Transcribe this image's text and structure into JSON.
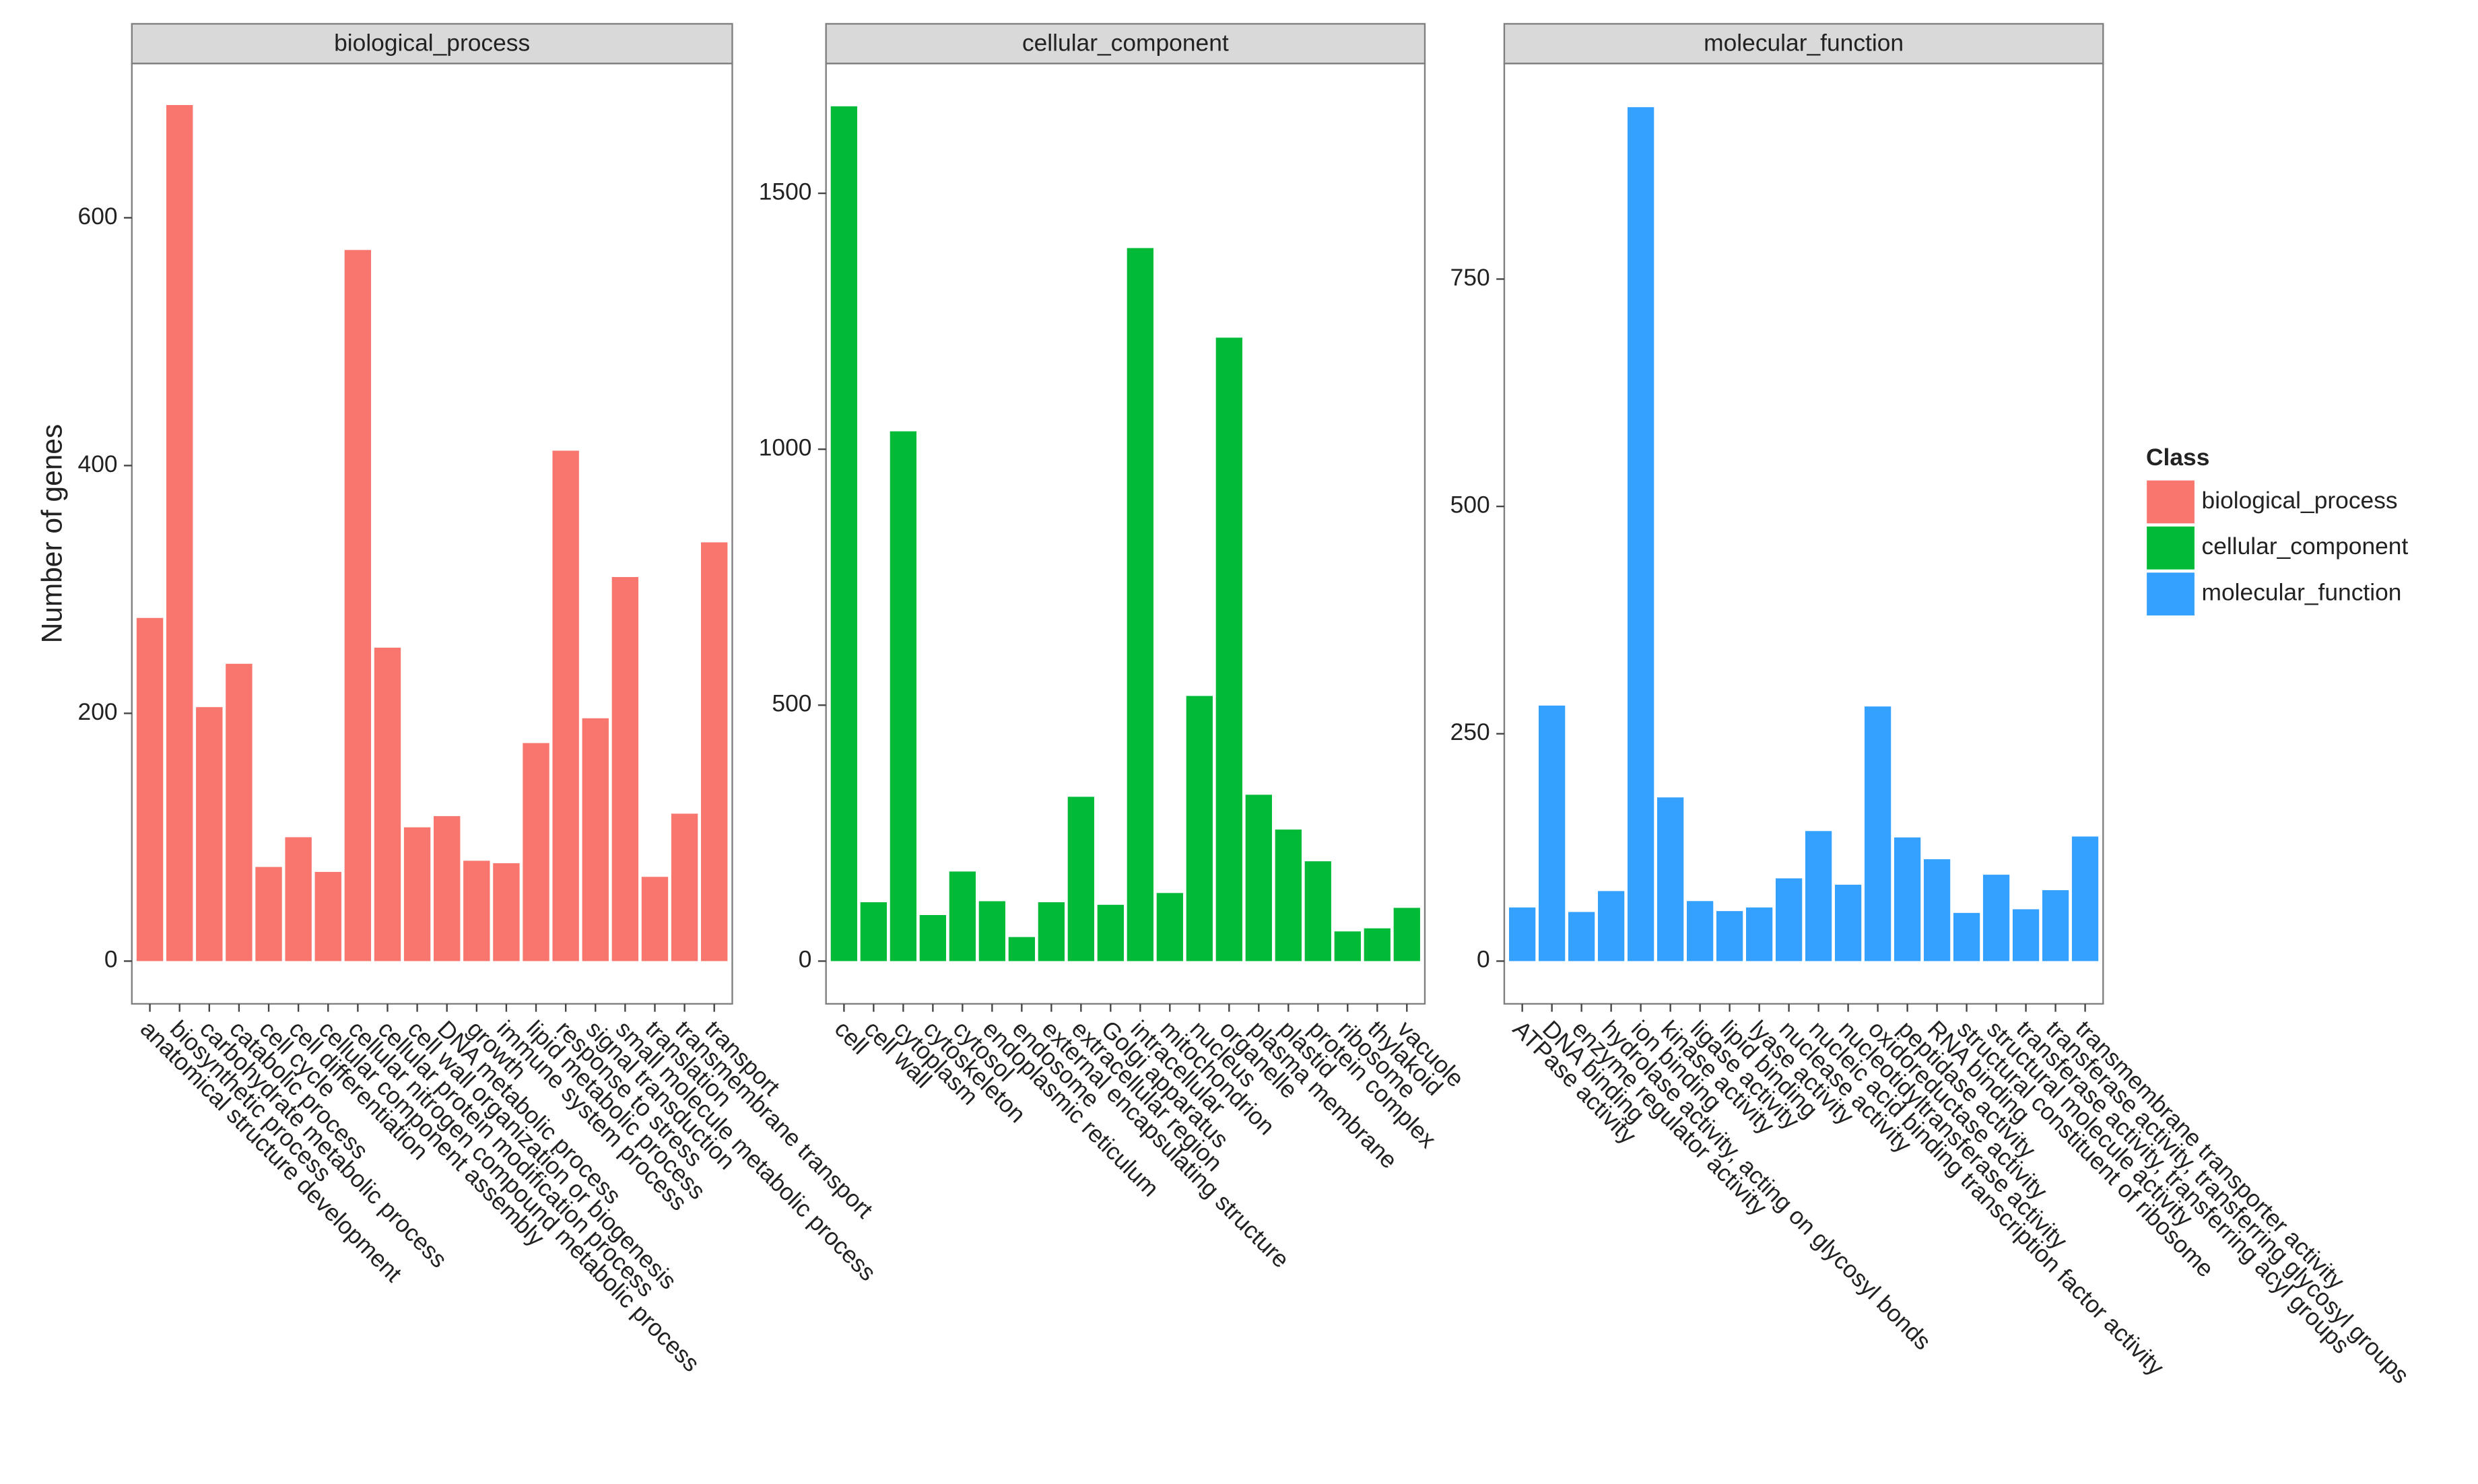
{
  "ylabel": "Number of genes",
  "legend": {
    "title": "Class",
    "position": "right"
  },
  "chart_data": [
    {
      "type": "bar",
      "title": "biological_process",
      "color": "#f8766d",
      "categories": [
        "anatomical structure development",
        "biosynthetic process",
        "carbohydrate metabolic process",
        "catabolic process",
        "cell cycle",
        "cell differentiation",
        "cellular component assembly",
        "cellular nitrogen compound metabolic process",
        "cellular protein modification process",
        "cell wall organization or biogenesis",
        "DNA metabolic process",
        "growth",
        "immune system process",
        "lipid metabolic process",
        "response to stress",
        "signal transduction",
        "small molecule metabolic process",
        "translation",
        "transmembrane transport",
        "transport"
      ],
      "values": [
        277,
        691,
        205,
        240,
        76,
        100,
        72,
        574,
        253,
        108,
        117,
        81,
        79,
        176,
        412,
        196,
        310,
        68,
        119,
        338
      ],
      "ylim": [
        -34.5,
        724.5
      ],
      "yticks": [
        0,
        200,
        400,
        600
      ],
      "grid": false
    },
    {
      "type": "bar",
      "title": "cellular_component",
      "color": "#00ba38",
      "categories": [
        "cell",
        "cell wall",
        "cytoplasm",
        "cytoskeleton",
        "cytosol",
        "endoplasmic reticulum",
        "endosome",
        "external encapsulating structure",
        "extracellular region",
        "Golgi apparatus",
        "intracellular",
        "mitochondrion",
        "nucleus",
        "organelle",
        "plasma membrane",
        "plastid",
        "protein complex",
        "ribosome",
        "thylakoid",
        "vacuole"
      ],
      "values": [
        1670,
        115,
        1035,
        90,
        175,
        117,
        47,
        115,
        321,
        110,
        1393,
        133,
        518,
        1218,
        325,
        257,
        195,
        58,
        64,
        104
      ],
      "ylim": [
        -83.5,
        1753.5
      ],
      "yticks": [
        0,
        500,
        1000,
        1500
      ],
      "grid": false
    },
    {
      "type": "bar",
      "title": "molecular_function",
      "color": "#34a0ff",
      "categories": [
        "ATPase activity",
        "DNA binding",
        "enzyme regulator activity",
        "hydrolase activity, acting on glycosyl bonds",
        "ion binding",
        "kinase activity",
        "ligase activity",
        "lipid binding",
        "lyase activity",
        "nuclease activity",
        "nucleic acid binding transcription factor activity",
        "nucleotidyltransferase activity",
        "oxidoreductase activity",
        "peptidase activity",
        "RNA binding",
        "structural constituent of ribosome",
        "structural molecule activity",
        "transferase activity, transferring acyl groups",
        "transferase activity, transferring glycosyl groups",
        "transmembrane transporter activity"
      ],
      "values": [
        59,
        281,
        54,
        77,
        939,
        180,
        66,
        55,
        59,
        91,
        143,
        84,
        280,
        136,
        112,
        53,
        95,
        57,
        78,
        137
      ],
      "ylim": [
        -47,
        987
      ],
      "yticks": [
        0,
        250,
        500,
        750
      ],
      "grid": false
    }
  ]
}
